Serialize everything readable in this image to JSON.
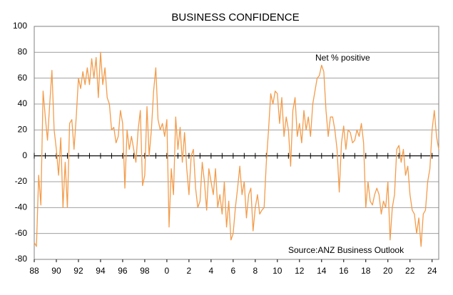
{
  "chart_data": {
    "type": "line",
    "title": "BUSINESS CONFIDENCE",
    "annotations": [
      "Net % positive",
      "Source:ANZ Business Outlook"
    ],
    "color": "#f39c4b",
    "x": [
      1988,
      1988.2,
      1988.4,
      1988.6,
      1988.8,
      1989,
      1989.2,
      1989.4,
      1989.6,
      1989.8,
      1990,
      1990.2,
      1990.4,
      1990.6,
      1990.8,
      1991,
      1991.2,
      1991.4,
      1991.6,
      1991.8,
      1992,
      1992.2,
      1992.4,
      1992.6,
      1992.8,
      1993,
      1993.2,
      1993.4,
      1993.6,
      1993.8,
      1994,
      1994.2,
      1994.4,
      1994.6,
      1994.8,
      1995,
      1995.2,
      1995.4,
      1995.6,
      1995.8,
      1996,
      1996.2,
      1996.4,
      1996.6,
      1996.8,
      1997,
      1997.2,
      1997.4,
      1997.6,
      1997.8,
      1998,
      1998.2,
      1998.4,
      1998.6,
      1998.8,
      1999,
      1999.2,
      1999.4,
      1999.6,
      1999.8,
      2000,
      2000.2,
      2000.4,
      2000.6,
      2000.8,
      2001,
      2001.2,
      2001.4,
      2001.6,
      2001.8,
      2002,
      2002.2,
      2002.4,
      2002.6,
      2002.8,
      2003,
      2003.2,
      2003.4,
      2003.6,
      2003.8,
      2004,
      2004.2,
      2004.4,
      2004.6,
      2004.8,
      2005,
      2005.2,
      2005.4,
      2005.6,
      2005.8,
      2006,
      2006.2,
      2006.4,
      2006.6,
      2006.8,
      2007,
      2007.2,
      2007.4,
      2007.6,
      2007.8,
      2008,
      2008.2,
      2008.4,
      2008.6,
      2008.8,
      2009,
      2009.2,
      2009.4,
      2009.6,
      2009.8,
      2010,
      2010.2,
      2010.4,
      2010.6,
      2010.8,
      2011,
      2011.2,
      2011.4,
      2011.6,
      2011.8,
      2012,
      2012.2,
      2012.4,
      2012.6,
      2012.8,
      2013,
      2013.2,
      2013.4,
      2013.6,
      2013.8,
      2014,
      2014.2,
      2014.4,
      2014.6,
      2014.8,
      2015,
      2015.2,
      2015.4,
      2015.6,
      2015.8,
      2016,
      2016.2,
      2016.4,
      2016.6,
      2016.8,
      2017,
      2017.2,
      2017.4,
      2017.6,
      2017.8,
      2018,
      2018.2,
      2018.4,
      2018.6,
      2018.8,
      2019,
      2019.2,
      2019.4,
      2019.6,
      2019.8,
      2020,
      2020.2,
      2020.4,
      2020.6,
      2020.8,
      2021,
      2021.2,
      2021.4,
      2021.6,
      2021.8,
      2022,
      2022.2,
      2022.4,
      2022.6,
      2022.8,
      2023,
      2023.2,
      2023.4,
      2023.6,
      2023.8,
      2024,
      2024.2,
      2024.4,
      2024.6
    ],
    "values": [
      -67,
      -70,
      -15,
      -38,
      50,
      30,
      12,
      40,
      66,
      20,
      5,
      -15,
      14,
      -40,
      -5,
      -40,
      25,
      28,
      5,
      30,
      60,
      52,
      65,
      55,
      68,
      55,
      75,
      60,
      76,
      45,
      80,
      55,
      68,
      45,
      40,
      20,
      22,
      10,
      15,
      35,
      25,
      -25,
      20,
      5,
      15,
      5,
      -5,
      20,
      35,
      -23,
      -15,
      38,
      0,
      20,
      50,
      68,
      28,
      20,
      25,
      15,
      28,
      -55,
      -10,
      -30,
      30,
      5,
      22,
      -5,
      18,
      -10,
      -30,
      0,
      5,
      -25,
      -40,
      -35,
      -5,
      -20,
      -42,
      -10,
      -20,
      -30,
      -10,
      -40,
      -30,
      -45,
      -20,
      -55,
      -35,
      -65,
      -60,
      -40,
      -25,
      -8,
      -30,
      -20,
      -48,
      -30,
      -25,
      -58,
      -40,
      -30,
      -45,
      -42,
      -40,
      -5,
      20,
      48,
      40,
      50,
      48,
      25,
      45,
      15,
      30,
      20,
      -8,
      35,
      45,
      15,
      25,
      10,
      35,
      20,
      30,
      15,
      40,
      50,
      60,
      62,
      70,
      65,
      35,
      15,
      30,
      30,
      20,
      5,
      -28,
      10,
      23,
      5,
      20,
      18,
      10,
      12,
      20,
      15,
      25,
      10,
      -40,
      -20,
      -35,
      -38,
      -30,
      -25,
      -30,
      -45,
      -35,
      -40,
      -20,
      -65,
      -40,
      -30,
      5,
      8,
      -5,
      5,
      -15,
      -8,
      -30,
      -42,
      -45,
      -60,
      -48,
      -70,
      -45,
      -42,
      -20,
      -10,
      20,
      35,
      15,
      5
    ],
    "xlim": [
      1988,
      2024.6
    ],
    "xticks": [
      {
        "value": 1988,
        "label": "88"
      },
      {
        "value": 1990,
        "label": "90"
      },
      {
        "value": 1992,
        "label": "92"
      },
      {
        "value": 1994,
        "label": "94"
      },
      {
        "value": 1996,
        "label": "96"
      },
      {
        "value": 1998,
        "label": "98"
      },
      {
        "value": 2000,
        "label": "0"
      },
      {
        "value": 2002,
        "label": "2"
      },
      {
        "value": 2004,
        "label": "4"
      },
      {
        "value": 2006,
        "label": "6"
      },
      {
        "value": 2008,
        "label": "8"
      },
      {
        "value": 2010,
        "label": "10"
      },
      {
        "value": 2012,
        "label": "12"
      },
      {
        "value": 2014,
        "label": "14"
      },
      {
        "value": 2016,
        "label": "16"
      },
      {
        "value": 2018,
        "label": "18"
      },
      {
        "value": 2020,
        "label": "20"
      },
      {
        "value": 2022,
        "label": "22"
      },
      {
        "value": 2024,
        "label": "24"
      }
    ],
    "ylim": [
      -80,
      100
    ],
    "yticks": [
      -80,
      -60,
      -40,
      -20,
      0,
      20,
      40,
      60,
      80,
      100
    ],
    "grid": true
  }
}
